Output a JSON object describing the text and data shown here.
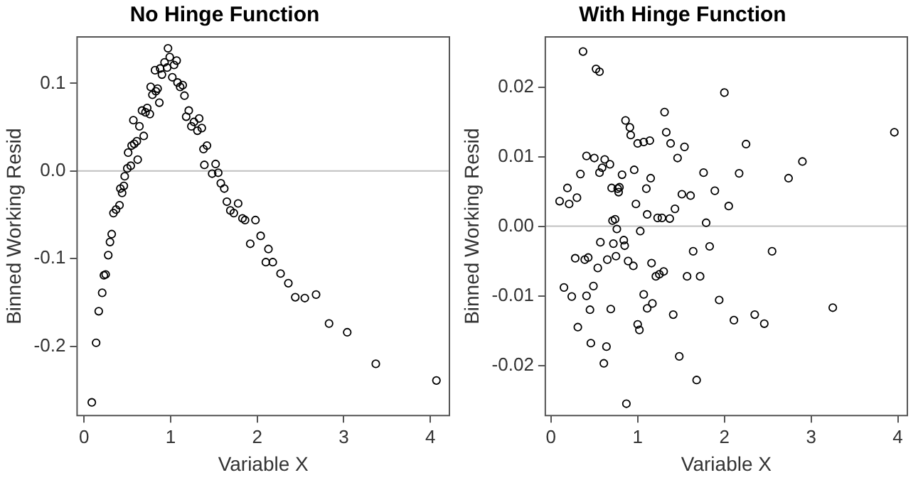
{
  "chart_data": [
    {
      "type": "scatter",
      "title": "No Hinge Function",
      "xlabel": "Variable X",
      "ylabel": "Binned Working Resid",
      "marker": "circle",
      "grid": false,
      "legend": false,
      "xlim": [
        -0.08,
        4.22
      ],
      "xticks": [
        0,
        1,
        2,
        3,
        4
      ],
      "ylim": [
        -0.279,
        0.153
      ],
      "yticks": [
        -0.2,
        -0.1,
        {
          "value": 0,
          "label": "0.0"
        },
        0.1
      ],
      "ref_lines": [
        {
          "axis": "y",
          "value": 0,
          "color": "#bfbfbf"
        }
      ],
      "series": [
        {
          "color": "#000000",
          "x": [
            0.09,
            0.14,
            0.17,
            0.21,
            0.23,
            0.25,
            0.28,
            0.3,
            0.32,
            0.34,
            0.37,
            0.41,
            0.42,
            0.44,
            0.46,
            0.47,
            0.5,
            0.51,
            0.54,
            0.55,
            0.57,
            0.58,
            0.62,
            0.61,
            0.64,
            0.67,
            0.69,
            0.71,
            0.73,
            0.76,
            0.77,
            0.79,
            0.82,
            0.83,
            0.85,
            0.87,
            0.88,
            0.9,
            0.93,
            0.96,
            0.97,
            0.99,
            1.02,
            1.04,
            1.07,
            1.08,
            1.11,
            1.14,
            1.16,
            1.18,
            1.21,
            1.24,
            1.27,
            1.31,
            1.33,
            1.36,
            1.38,
            1.42,
            1.39,
            1.48,
            1.52,
            1.55,
            1.58,
            1.62,
            1.65,
            1.69,
            1.73,
            1.78,
            1.83,
            1.86,
            1.92,
            1.98,
            2.04,
            2.1,
            2.13,
            2.18,
            2.27,
            2.36,
            2.44,
            2.55,
            2.68,
            2.83,
            3.04,
            3.37,
            4.07
          ],
          "values": [
            -0.264,
            -0.196,
            -0.16,
            -0.139,
            -0.119,
            -0.118,
            -0.096,
            -0.081,
            -0.072,
            -0.048,
            -0.044,
            -0.039,
            -0.02,
            -0.025,
            -0.017,
            -0.006,
            0.003,
            0.021,
            0.006,
            0.029,
            0.058,
            0.031,
            0.013,
            0.034,
            0.051,
            0.069,
            0.04,
            0.067,
            0.072,
            0.065,
            0.096,
            0.087,
            0.115,
            0.091,
            0.094,
            0.078,
            0.117,
            0.11,
            0.124,
            0.118,
            0.14,
            0.13,
            0.107,
            0.121,
            0.126,
            0.101,
            0.096,
            0.098,
            0.086,
            0.062,
            0.069,
            0.051,
            0.056,
            0.046,
            0.06,
            0.049,
            0.025,
            0.029,
            0.007,
            -0.003,
            0.008,
            -0.002,
            -0.014,
            -0.02,
            -0.035,
            -0.045,
            -0.048,
            -0.037,
            -0.054,
            -0.056,
            -0.083,
            -0.056,
            -0.074,
            -0.104,
            -0.089,
            -0.104,
            -0.117,
            -0.128,
            -0.144,
            -0.145,
            -0.141,
            -0.174,
            -0.184,
            -0.22,
            -0.239
          ]
        }
      ]
    },
    {
      "type": "scatter",
      "title": "With Hinge Function",
      "xlabel": "Variable X",
      "ylabel": "Binned Working Resid",
      "marker": "circle",
      "grid": false,
      "legend": false,
      "xlim": [
        -0.065,
        4.11
      ],
      "xticks": [
        0,
        1,
        2,
        3,
        4
      ],
      "ylim": [
        -0.0272,
        0.0272
      ],
      "yticks": [
        -0.02,
        -0.01,
        {
          "value": 0,
          "label": "0.00"
        },
        0.01,
        0.02
      ],
      "ref_lines": [
        {
          "axis": "y",
          "value": 0,
          "color": "#bfbfbf"
        }
      ],
      "series": [
        {
          "color": "#000000",
          "x": [
            0.1,
            0.15,
            0.19,
            0.21,
            0.24,
            0.28,
            0.3,
            0.31,
            0.34,
            0.37,
            0.39,
            0.41,
            0.41,
            0.43,
            0.45,
            0.46,
            0.49,
            0.5,
            0.52,
            0.56,
            0.54,
            0.56,
            0.57,
            0.59,
            0.61,
            0.62,
            0.64,
            0.65,
            0.68,
            0.69,
            0.7,
            0.71,
            0.72,
            0.74,
            0.75,
            0.76,
            0.77,
            0.78,
            0.79,
            0.82,
            0.84,
            0.85,
            0.87,
            0.86,
            0.89,
            0.91,
            0.92,
            0.95,
            0.96,
            0.98,
            1.0,
            1.02,
            1.0,
            1.03,
            1.07,
            1.07,
            1.1,
            1.11,
            1.11,
            1.14,
            1.15,
            1.16,
            1.17,
            1.21,
            1.23,
            1.25,
            1.28,
            1.3,
            1.31,
            1.33,
            1.37,
            1.38,
            1.41,
            1.43,
            1.46,
            1.48,
            1.51,
            1.54,
            1.57,
            1.61,
            1.64,
            1.68,
            1.72,
            1.76,
            1.79,
            1.83,
            1.89,
            1.94,
            2.0,
            2.05,
            2.11,
            2.17,
            2.25,
            2.35,
            2.46,
            2.55,
            2.74,
            2.9,
            3.25,
            3.96
          ],
          "values": [
            0.0036,
            -0.0088,
            0.0055,
            0.0032,
            -0.0101,
            -0.0046,
            0.0041,
            -0.0145,
            0.0075,
            0.0251,
            -0.0048,
            0.0101,
            -0.01,
            -0.0045,
            -0.012,
            -0.0168,
            -0.0086,
            0.0098,
            0.0226,
            0.0222,
            -0.006,
            0.0077,
            -0.0023,
            0.0084,
            -0.0197,
            0.0096,
            -0.0173,
            -0.0048,
            0.0089,
            -0.0119,
            0.0055,
            0.0008,
            -0.0025,
            0.001,
            -0.0043,
            -0.0004,
            0.0054,
            0.0049,
            0.0056,
            0.0074,
            -0.002,
            -0.0028,
            -0.0255,
            0.0152,
            -0.005,
            0.0142,
            0.0131,
            -0.0057,
            0.0081,
            0.0032,
            -0.0141,
            -0.0149,
            0.0119,
            -0.0007,
            0.0121,
            -0.0098,
            0.0054,
            -0.0118,
            0.0017,
            0.0123,
            0.0069,
            -0.0053,
            -0.0111,
            -0.0072,
            0.0012,
            -0.0069,
            0.0012,
            -0.0065,
            0.0164,
            0.0135,
            0.0011,
            0.0119,
            -0.0127,
            0.0025,
            0.0098,
            -0.0187,
            0.0046,
            0.0114,
            -0.0072,
            0.0044,
            -0.0036,
            -0.0221,
            -0.0072,
            0.0077,
            0.0005,
            -0.0029,
            0.0051,
            -0.0106,
            0.0192,
            0.0029,
            -0.0135,
            0.0076,
            0.0118,
            -0.0127,
            -0.014,
            -0.0036,
            0.0069,
            0.0093,
            -0.0117,
            0.0135
          ]
        }
      ]
    }
  ]
}
